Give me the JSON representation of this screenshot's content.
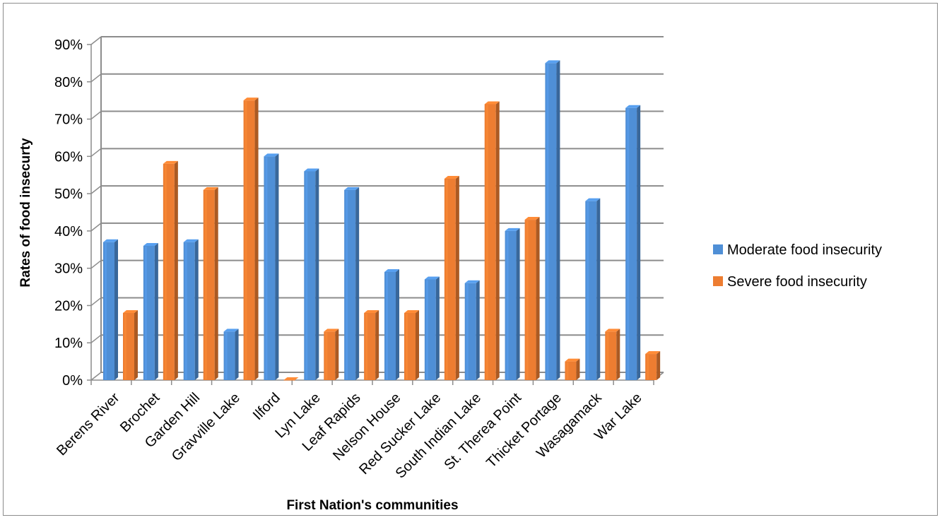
{
  "chart_data": {
    "type": "bar",
    "style": "3d-clustered-column",
    "title": "",
    "xlabel": "First Nation's communities",
    "ylabel": "Rates of food insecurty",
    "ylim": [
      0,
      90
    ],
    "yticks": [
      "0%",
      "10%",
      "20%",
      "30%",
      "40%",
      "50%",
      "60%",
      "70%",
      "80%",
      "90%"
    ],
    "grid": true,
    "legend_position": "right",
    "categories": [
      "Berens River",
      "Brochet",
      "Garden Hill",
      "Gravville Lake",
      "Ilford",
      "Lyn Lake",
      "Leaf Rapids",
      "Nelson House",
      "Red Sucker Lake",
      "South Indian Lake",
      "St. Therea Point",
      "Thicket Portage",
      "Wasagamack",
      "War Lake"
    ],
    "series": [
      {
        "name": "Moderate food insecurity",
        "color": "#4f8fd6",
        "values": [
          37,
          36,
          37,
          13,
          60,
          56,
          51,
          29,
          27,
          26,
          40,
          85,
          48,
          73
        ]
      },
      {
        "name": "Severe food insecurity",
        "color": "#ed7d31",
        "values": [
          18,
          58,
          51,
          75,
          0,
          13,
          18,
          18,
          54,
          74,
          43,
          5,
          13,
          7
        ]
      }
    ]
  }
}
